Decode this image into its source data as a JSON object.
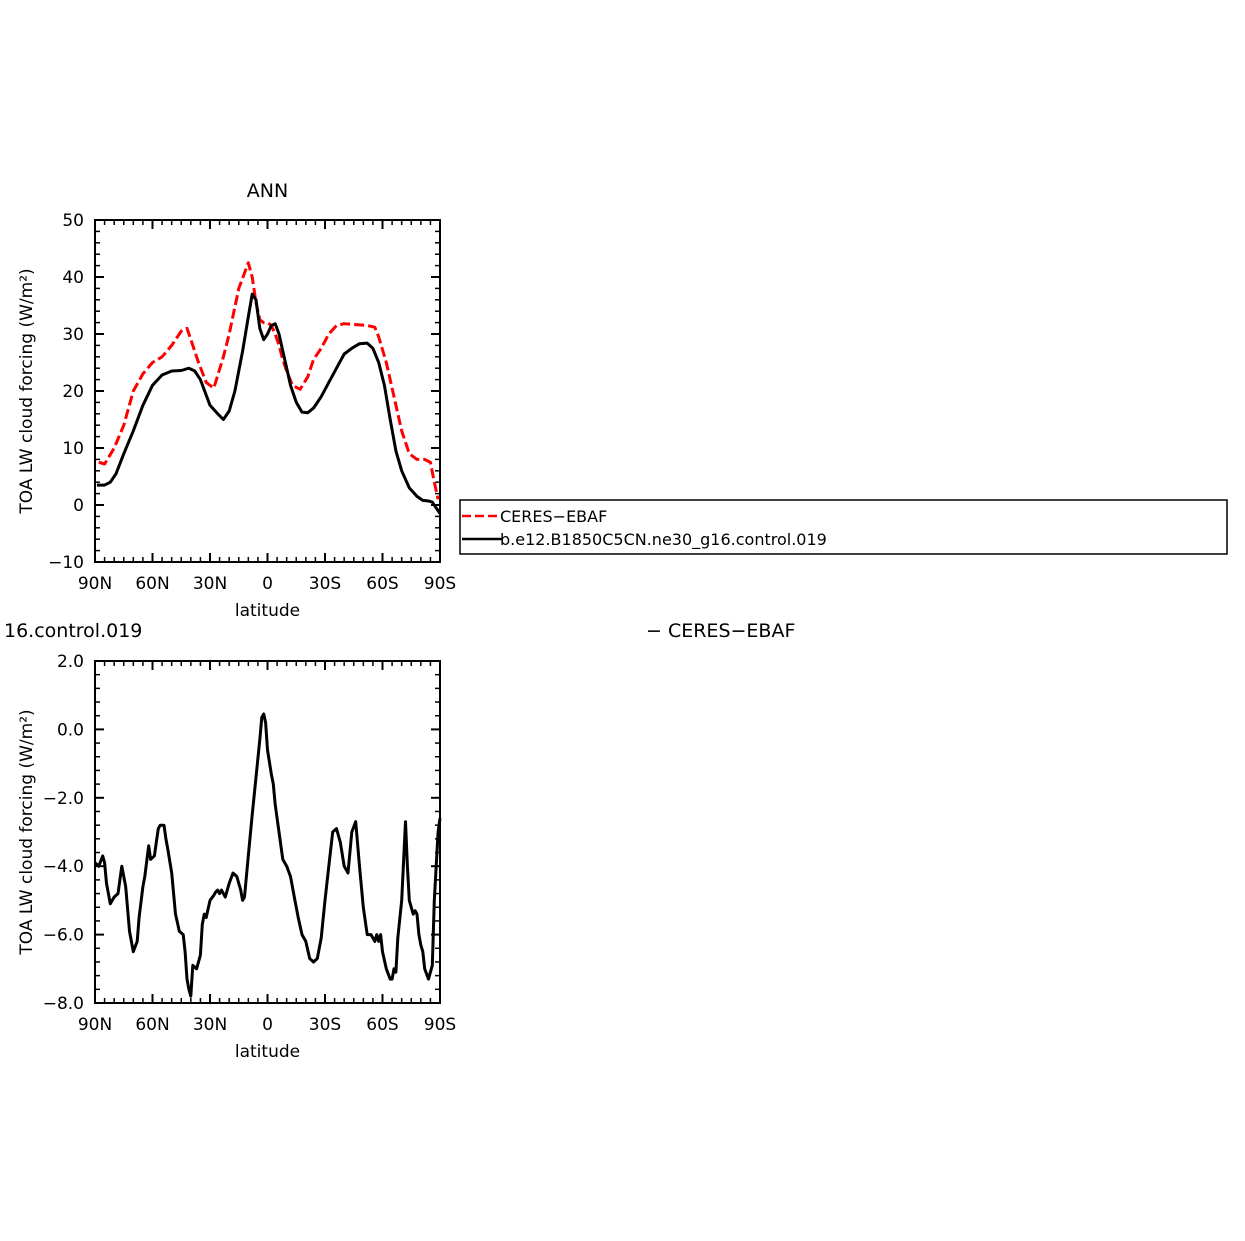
{
  "chart_data": [
    {
      "type": "line",
      "title": "ANN",
      "xlabel": "latitude",
      "ylabel": "TOA LW cloud forcing (W/m²)",
      "xlim": [
        90,
        -90
      ],
      "ylim": [
        -10,
        50
      ],
      "xticks": [
        {
          "value": 90,
          "label": "90N"
        },
        {
          "value": 60,
          "label": "60N"
        },
        {
          "value": 30,
          "label": "30N"
        },
        {
          "value": 0,
          "label": "0"
        },
        {
          "value": -30,
          "label": "30S"
        },
        {
          "value": -60,
          "label": "60S"
        },
        {
          "value": -90,
          "label": "90S"
        }
      ],
      "yticks": [
        {
          "value": 50,
          "label": "50"
        },
        {
          "value": 40,
          "label": "40"
        },
        {
          "value": 30,
          "label": "30"
        },
        {
          "value": 20,
          "label": "20"
        },
        {
          "value": 10,
          "label": "10"
        },
        {
          "value": 0,
          "label": "0"
        },
        {
          "value": -10,
          "label": "−10"
        }
      ],
      "legend": {
        "placement": "right",
        "entries": [
          {
            "label": "CERES−EBAF",
            "color": "#ff0000",
            "dash": "dashed"
          },
          {
            "label": "b.e12.B1850C5CN.ne30_g16.control.019",
            "color": "#000000",
            "dash": "solid"
          }
        ]
      },
      "series": [
        {
          "name": "CERES−EBAF",
          "color": "#ff0000",
          "dash": "dashed",
          "x": [
            88,
            85,
            80,
            75,
            70,
            65,
            60,
            55,
            50,
            45,
            42,
            39,
            36,
            32,
            28,
            23,
            20,
            15,
            10,
            8,
            6,
            4,
            2,
            0,
            -2,
            -4,
            -6,
            -8,
            -10,
            -13,
            -17,
            -21,
            -24,
            -28,
            -32,
            -36,
            -40,
            -44,
            -48,
            -52,
            -56,
            -58,
            -62,
            -66,
            -70,
            -74,
            -78,
            -82,
            -85,
            -87,
            -89
          ],
          "y": [
            7.5,
            7.2,
            10.0,
            14.0,
            20.0,
            23.0,
            25.0,
            26.0,
            28.0,
            30.5,
            31.0,
            28.0,
            25.0,
            21.5,
            20.5,
            26.0,
            30.0,
            38.0,
            42.5,
            40.0,
            35.5,
            32.5,
            32.0,
            32.0,
            31.5,
            30.0,
            28.0,
            25.5,
            23.5,
            21.0,
            20.3,
            22.5,
            25.5,
            27.5,
            30.0,
            31.5,
            31.8,
            31.7,
            31.6,
            31.5,
            31.2,
            29.5,
            25.0,
            19.0,
            13.0,
            9.0,
            8.0,
            8.0,
            7.5,
            4.0,
            1.0
          ]
        },
        {
          "name": "b.e12.B1850C5CN.ne30_g16.control.019",
          "color": "#000000",
          "dash": "solid",
          "x": [
            89,
            85,
            82,
            79,
            75,
            70,
            65,
            60,
            55,
            50,
            45,
            41,
            38,
            35,
            30,
            26,
            23,
            20,
            17,
            13,
            10,
            8,
            6,
            4,
            2,
            0,
            -2,
            -4,
            -6,
            -8,
            -10,
            -12,
            -15,
            -18,
            -21,
            -24,
            -28,
            -32,
            -36,
            -40,
            -44,
            -48,
            -52,
            -55,
            -58,
            -61,
            -64,
            -67,
            -70,
            -74,
            -78,
            -81,
            -84,
            -86,
            -88,
            -90
          ],
          "y": [
            3.5,
            3.5,
            4.0,
            5.5,
            9.0,
            13.0,
            17.5,
            21.0,
            22.8,
            23.5,
            23.6,
            24.0,
            23.5,
            22.0,
            17.5,
            16.0,
            15.0,
            16.5,
            20.0,
            27.0,
            33.0,
            37.0,
            36.0,
            31.0,
            29.0,
            30.0,
            31.5,
            31.8,
            30.0,
            27.0,
            24.0,
            21.0,
            18.0,
            16.3,
            16.2,
            17.0,
            19.0,
            21.5,
            24.0,
            26.5,
            27.5,
            28.3,
            28.4,
            27.5,
            25.0,
            21.0,
            15.0,
            9.5,
            6.0,
            3.0,
            1.5,
            0.8,
            0.7,
            0.5,
            -0.5,
            -1.5
          ]
        }
      ]
    },
    {
      "type": "line",
      "title": "16.control.019",
      "title_right": "− CERES−EBAF",
      "xlabel": "latitude",
      "ylabel": "TOA LW cloud forcing (W/m²)",
      "xlim": [
        90,
        -90
      ],
      "ylim": [
        -8.0,
        2.0
      ],
      "xticks": [
        {
          "value": 90,
          "label": "90N"
        },
        {
          "value": 60,
          "label": "60N"
        },
        {
          "value": 30,
          "label": "30N"
        },
        {
          "value": 0,
          "label": "0"
        },
        {
          "value": -30,
          "label": "30S"
        },
        {
          "value": -60,
          "label": "60S"
        },
        {
          "value": -90,
          "label": "90S"
        }
      ],
      "yticks": [
        {
          "value": 2.0,
          "label": "2.0"
        },
        {
          "value": 0.0,
          "label": "0.0"
        },
        {
          "value": -2.0,
          "label": "−2.0"
        },
        {
          "value": -4.0,
          "label": "−4.0"
        },
        {
          "value": -6.0,
          "label": "−6.0"
        },
        {
          "value": -8.0,
          "label": "−8.0"
        }
      ],
      "series": [
        {
          "color": "#000000",
          "dash": "solid",
          "x": [
            90,
            88,
            86,
            85,
            84,
            82,
            80,
            78,
            76,
            74,
            72,
            70,
            68,
            67,
            65,
            64,
            62,
            61,
            59,
            58,
            57,
            56,
            54,
            53,
            52,
            50,
            48,
            46,
            44,
            43,
            42,
            41,
            40,
            39,
            38,
            37,
            35,
            34,
            33,
            32,
            30,
            28,
            27,
            26,
            25,
            24,
            22,
            20,
            18,
            16,
            14,
            13,
            12,
            10,
            8,
            6,
            4,
            3,
            2,
            1,
            0,
            -2,
            -3,
            -4,
            -5,
            -6,
            -8,
            -10,
            -12,
            -14,
            -16,
            -18,
            -20,
            -22,
            -24,
            -26,
            -28,
            -30,
            -32,
            -34,
            -36,
            -38,
            -40,
            -42,
            -44,
            -46,
            -48,
            -50,
            -52,
            -54,
            -56,
            -57,
            -58,
            -59,
            -60,
            -62,
            -64,
            -65,
            -66,
            -67,
            -68,
            -70,
            -72,
            -73,
            -74,
            -76,
            -77,
            -78,
            -79,
            -80,
            -81,
            -82,
            -84,
            -85,
            -86,
            -87,
            -88,
            -89,
            -90
          ],
          "y": [
            -3.9,
            -4.0,
            -3.7,
            -3.9,
            -4.5,
            -5.1,
            -4.9,
            -4.8,
            -4.0,
            -4.6,
            -5.9,
            -6.5,
            -6.2,
            -5.5,
            -4.6,
            -4.3,
            -3.4,
            -3.8,
            -3.7,
            -3.3,
            -2.9,
            -2.8,
            -2.8,
            -3.2,
            -3.5,
            -4.2,
            -5.4,
            -5.9,
            -6.0,
            -6.5,
            -7.3,
            -7.6,
            -7.8,
            -6.9,
            -6.95,
            -7.0,
            -6.6,
            -5.7,
            -5.4,
            -5.5,
            -5.0,
            -4.85,
            -4.75,
            -4.7,
            -4.8,
            -4.7,
            -4.9,
            -4.5,
            -4.2,
            -4.3,
            -4.7,
            -5.0,
            -4.9,
            -3.7,
            -2.5,
            -1.4,
            -0.3,
            0.35,
            0.45,
            0.2,
            -0.6,
            -1.3,
            -1.6,
            -2.2,
            -2.6,
            -3.0,
            -3.8,
            -4.0,
            -4.3,
            -4.9,
            -5.5,
            -6.0,
            -6.2,
            -6.7,
            -6.8,
            -6.7,
            -6.1,
            -5.0,
            -4.0,
            -3.0,
            -2.9,
            -3.3,
            -4.0,
            -4.2,
            -3.0,
            -2.7,
            -4.0,
            -5.2,
            -6.0,
            -6.0,
            -6.2,
            -6.0,
            -6.2,
            -6.0,
            -6.5,
            -7.0,
            -7.3,
            -7.3,
            -7.0,
            -7.1,
            -6.1,
            -5.0,
            -2.7,
            -4.0,
            -5.0,
            -5.4,
            -5.3,
            -5.4,
            -6.0,
            -6.3,
            -6.5,
            -7.0,
            -7.3,
            -7.1,
            -6.9,
            -5.0,
            -4.0,
            -3.0,
            -2.6
          ]
        }
      ]
    }
  ]
}
